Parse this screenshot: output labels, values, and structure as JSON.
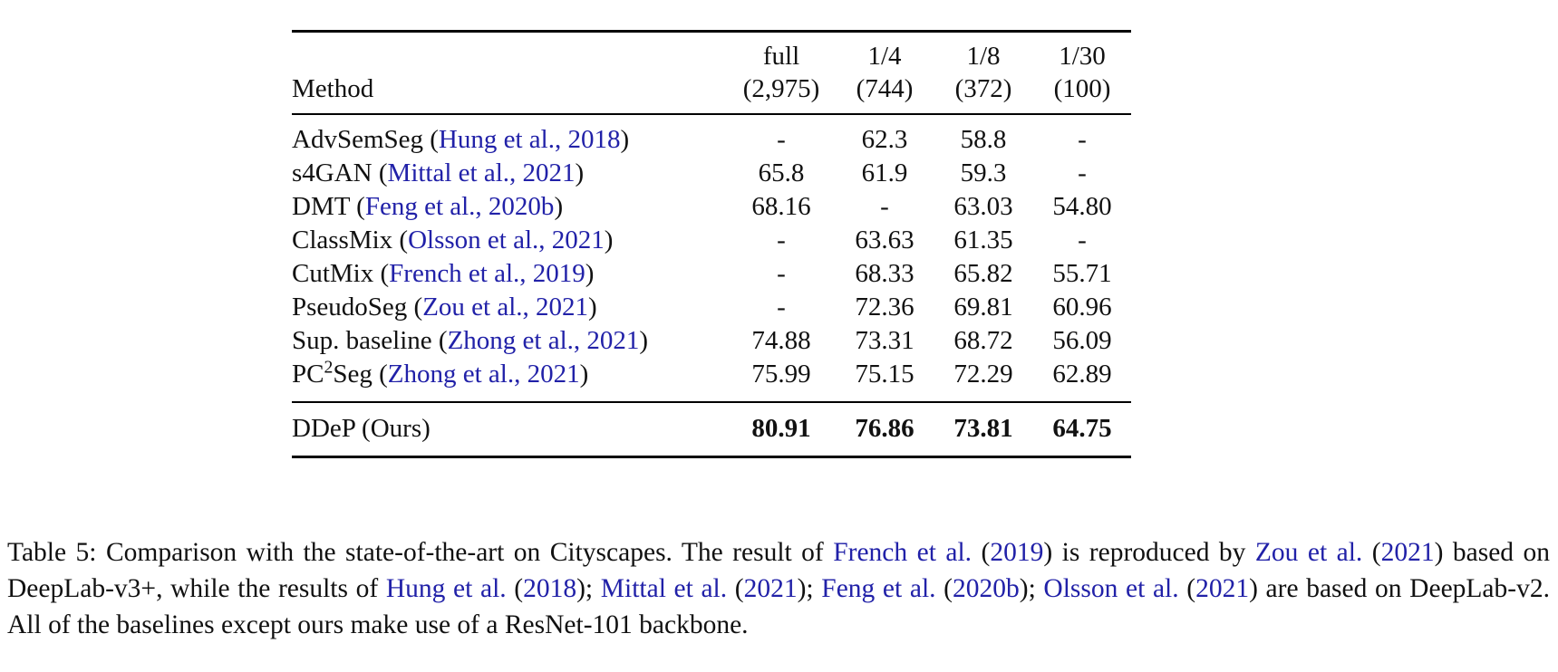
{
  "colors": {
    "citation": "#2121A8",
    "text": "#111111",
    "rule": "#000000",
    "background": "#FFFFFF"
  },
  "table": {
    "header": {
      "method_label": "Method",
      "columns": [
        {
          "line1": "full",
          "line2": "(2,975)"
        },
        {
          "line1": "1/4",
          "line2": "(744)"
        },
        {
          "line1": "1/8",
          "line2": "(372)"
        },
        {
          "line1": "1/30",
          "line2": "(100)"
        }
      ]
    },
    "rows": [
      {
        "method": [
          {
            "t": "AdvSemSeg (",
            "s": "text"
          },
          {
            "t": "Hung et al., 2018",
            "s": "cite"
          },
          {
            "t": ")",
            "s": "text"
          }
        ],
        "values": [
          "-",
          "62.3",
          "58.8",
          "-"
        ]
      },
      {
        "method": [
          {
            "t": "s4GAN (",
            "s": "text"
          },
          {
            "t": "Mittal et al., 2021",
            "s": "cite"
          },
          {
            "t": ")",
            "s": "text"
          }
        ],
        "values": [
          "65.8",
          "61.9",
          "59.3",
          "-"
        ]
      },
      {
        "method": [
          {
            "t": "DMT (",
            "s": "text"
          },
          {
            "t": "Feng et al., 2020b",
            "s": "cite"
          },
          {
            "t": ")",
            "s": "text"
          }
        ],
        "values": [
          "68.16",
          "-",
          "63.03",
          "54.80"
        ]
      },
      {
        "method": [
          {
            "t": "ClassMix (",
            "s": "text"
          },
          {
            "t": "Olsson et al., 2021",
            "s": "cite"
          },
          {
            "t": ")",
            "s": "text"
          }
        ],
        "values": [
          "-",
          "63.63",
          "61.35",
          "-"
        ]
      },
      {
        "method": [
          {
            "t": "CutMix (",
            "s": "text"
          },
          {
            "t": "French et al., 2019",
            "s": "cite"
          },
          {
            "t": ")",
            "s": "text"
          }
        ],
        "values": [
          "-",
          "68.33",
          "65.82",
          "55.71"
        ]
      },
      {
        "method": [
          {
            "t": "PseudoSeg (",
            "s": "text"
          },
          {
            "t": "Zou et al., 2021",
            "s": "cite"
          },
          {
            "t": ")",
            "s": "text"
          }
        ],
        "values": [
          "-",
          "72.36",
          "69.81",
          "60.96"
        ]
      },
      {
        "method": [
          {
            "t": "Sup. baseline (",
            "s": "text"
          },
          {
            "t": "Zhong et al., 2021",
            "s": "cite"
          },
          {
            "t": ")",
            "s": "text"
          }
        ],
        "values": [
          "74.88",
          "73.31",
          "68.72",
          "56.09"
        ]
      },
      {
        "method": [
          {
            "t": "PC",
            "s": "text"
          },
          {
            "t": "2",
            "s": "sup"
          },
          {
            "t": "Seg (",
            "s": "text"
          },
          {
            "t": "Zhong et al., 2021",
            "s": "cite"
          },
          {
            "t": ")",
            "s": "text"
          }
        ],
        "values": [
          "75.99",
          "75.15",
          "72.29",
          "62.89"
        ]
      }
    ],
    "final_row": {
      "method": "DDeP (Ours)",
      "values": [
        "80.91",
        "76.86",
        "73.81",
        "64.75"
      ]
    }
  },
  "caption": {
    "segments": [
      {
        "t": "Table 5: Comparison with the state-of-the-art on Cityscapes. The result of ",
        "s": "text"
      },
      {
        "t": "French et al.",
        "s": "cite"
      },
      {
        "t": " (",
        "s": "text"
      },
      {
        "t": "2019",
        "s": "cite"
      },
      {
        "t": ") is reproduced by ",
        "s": "text"
      },
      {
        "t": "Zou et al.",
        "s": "cite"
      },
      {
        "t": " (",
        "s": "text"
      },
      {
        "t": "2021",
        "s": "cite"
      },
      {
        "t": ") based on DeepLab-v3+, while the results of ",
        "s": "text"
      },
      {
        "t": "Hung et al.",
        "s": "cite"
      },
      {
        "t": " (",
        "s": "text"
      },
      {
        "t": "2018",
        "s": "cite"
      },
      {
        "t": "); ",
        "s": "text"
      },
      {
        "t": "Mittal et al.",
        "s": "cite"
      },
      {
        "t": " (",
        "s": "text"
      },
      {
        "t": "2021",
        "s": "cite"
      },
      {
        "t": "); ",
        "s": "text"
      },
      {
        "t": "Feng et al.",
        "s": "cite"
      },
      {
        "t": " (",
        "s": "text"
      },
      {
        "t": "2020b",
        "s": "cite"
      },
      {
        "t": "); ",
        "s": "text"
      },
      {
        "t": "Olsson et al.",
        "s": "cite"
      },
      {
        "t": " (",
        "s": "text"
      },
      {
        "t": "2021",
        "s": "cite"
      },
      {
        "t": ") are based on DeepLab-v2. All of the baselines except ours make use of a ResNet-101 backbone.",
        "s": "text"
      }
    ]
  }
}
